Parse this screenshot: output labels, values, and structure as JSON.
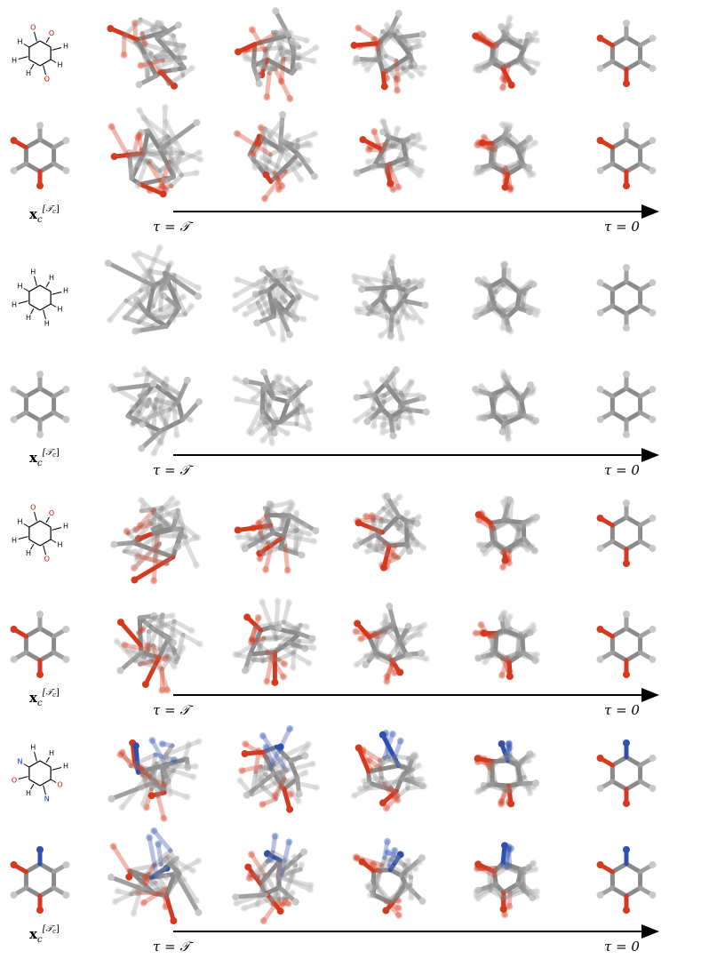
{
  "figure": {
    "groups": [
      {
        "structure_atoms": [
          "H",
          "O",
          "H",
          "H",
          "H",
          "O",
          "O",
          "H"
        ],
        "product_label": {
          "base": "x",
          "sub": "c",
          "sup_open": "[𝒯",
          "sup_sub": "c",
          "sup_close": "]"
        },
        "time_start": "τ = 𝒯",
        "time_end": "τ = 0"
      },
      {
        "structure_atoms": [
          "H",
          "H",
          "H",
          "H",
          "H",
          "H",
          "H",
          "H"
        ],
        "product_label": {
          "base": "x",
          "sub": "c",
          "sup_open": "[𝒯",
          "sup_sub": "c",
          "sup_close": "]"
        },
        "time_start": "τ = 𝒯",
        "time_end": "τ = 0"
      },
      {
        "structure_atoms": [
          "H",
          "O",
          "H",
          "H",
          "H",
          "O",
          "O",
          "H"
        ],
        "product_label": {
          "base": "x",
          "sub": "c",
          "sup_open": "[𝒯",
          "sup_sub": "c",
          "sup_close": "]"
        },
        "time_start": "τ = 𝒯",
        "time_end": "τ = 0"
      },
      {
        "structure_atoms": [
          "O",
          "N",
          "H",
          "O",
          "N",
          "H",
          "H",
          "H"
        ],
        "product_label": {
          "base": "x",
          "sub": "c",
          "sup_open": "[𝒯",
          "sup_sub": "c",
          "sup_close": "]"
        },
        "time_start": "τ = 𝒯",
        "time_end": "τ = 0"
      }
    ]
  }
}
